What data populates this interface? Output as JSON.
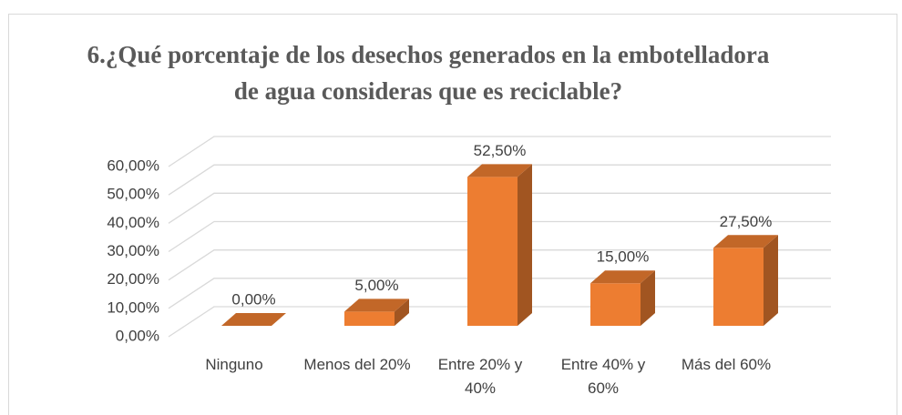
{
  "chart_data": {
    "type": "bar3d",
    "title": "6.¿Qué porcentaje de los desechos generados en la embotelladora de agua consideras que es reciclable?",
    "categories": [
      "Ninguno",
      "Menos del 20%",
      "Entre 20% y 40%",
      "Entre 40% y 60%",
      "Más del 60%"
    ],
    "values": [
      0,
      5,
      52.5,
      15,
      27.5
    ],
    "value_labels": [
      "0,00%",
      "5,00%",
      "52,50%",
      "15,00%",
      "27,50%"
    ],
    "color": "#ed7d31",
    "ylim": [
      0,
      60
    ],
    "yticks": [
      {
        "value": 0,
        "label": "0,00%"
      },
      {
        "value": 10,
        "label": "10,00%"
      },
      {
        "value": 20,
        "label": "20,00%"
      },
      {
        "value": 30,
        "label": "30,00%"
      },
      {
        "value": 40,
        "label": "40,00%"
      },
      {
        "value": 50,
        "label": "50,00%"
      },
      {
        "value": 60,
        "label": "60,00%"
      }
    ],
    "grid": true
  }
}
